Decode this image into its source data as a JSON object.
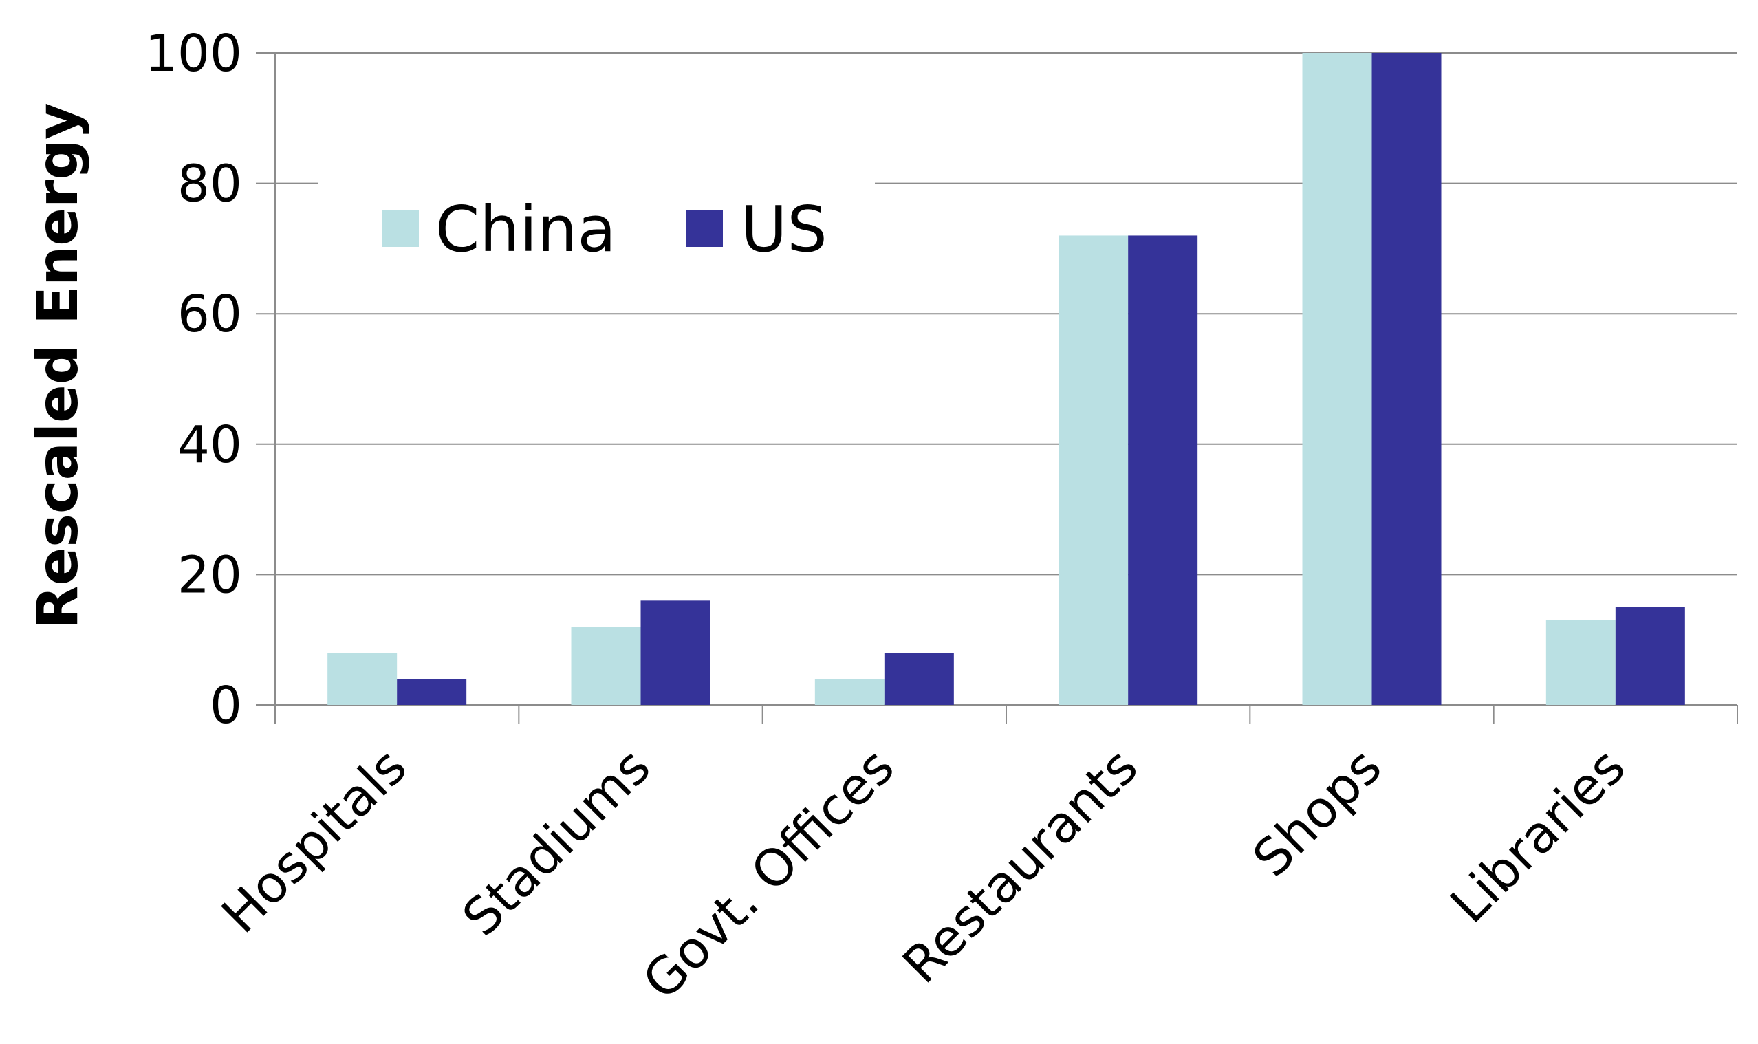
{
  "chart_data": {
    "type": "bar",
    "categories": [
      "Hospitals",
      "Stadiums",
      "Govt. Offices",
      "Restaurants",
      "Shops",
      "Libraries"
    ],
    "series": [
      {
        "name": "China",
        "values": [
          8,
          12,
          4,
          72,
          100,
          13
        ],
        "color": "#bae0e3"
      },
      {
        "name": "US",
        "values": [
          4,
          16,
          8,
          72,
          100,
          15
        ],
        "color": "#353399"
      }
    ],
    "title": "",
    "xlabel": "",
    "ylabel": "Rescaled Energy",
    "ylim": [
      0,
      100
    ],
    "yticks": [
      0,
      20,
      40,
      60,
      80,
      100
    ],
    "grid": true,
    "legend": "top-left"
  }
}
